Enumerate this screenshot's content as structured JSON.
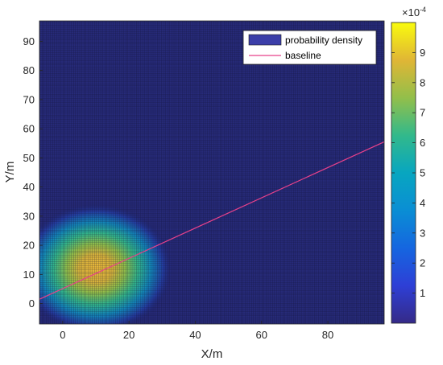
{
  "chart_data": {
    "type": "heatmap",
    "title": "",
    "xlabel": "X/m",
    "ylabel": "Y/m",
    "xlim": [
      -7,
      97
    ],
    "ylim": [
      -7,
      97
    ],
    "xticks": [
      0,
      20,
      40,
      60,
      80
    ],
    "yticks": [
      0,
      10,
      20,
      30,
      40,
      50,
      60,
      70,
      80,
      90
    ],
    "grid": true,
    "colormap": "parula",
    "colorbar": {
      "range": [
        0,
        0.001
      ],
      "ticks": [
        1,
        2,
        3,
        4,
        5,
        6,
        7,
        8,
        9
      ],
      "exponent_label": "×10",
      "exponent": "-4"
    },
    "density_peak": {
      "x": 10,
      "y": 12,
      "peak_value": 0.00098
    },
    "baseline": {
      "x": [
        -7,
        97
      ],
      "y": [
        1.5,
        55.5
      ],
      "color": "#e8418a"
    },
    "legend": {
      "position": "top-right",
      "entries": [
        {
          "label": "probability density",
          "kind": "patch",
          "color": "#3b3ea8"
        },
        {
          "label": "baseline",
          "kind": "line",
          "color": "#e8418a"
        }
      ]
    }
  }
}
